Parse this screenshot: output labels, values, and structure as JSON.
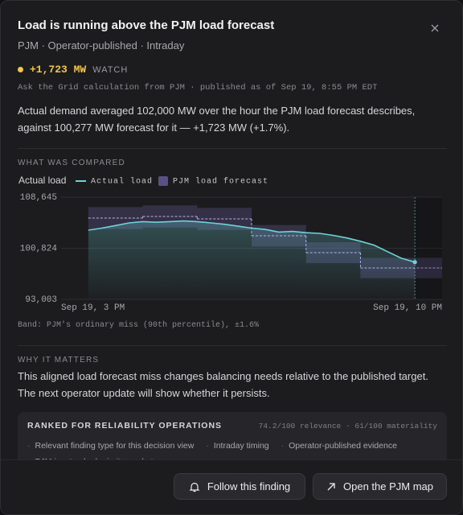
{
  "header": {
    "title": "Load is running above the PJM load forecast",
    "subtitle": "PJM · Operator-published · Intraday"
  },
  "status": {
    "value": "+1,723 MW",
    "level": "WATCH"
  },
  "source": "Ask the Grid calculation from PJM · published as of Sep 19, 8:55 PM EDT",
  "summary": "Actual demand averaged 102,000 MW over the hour the PJM load forecast describes, against 100,277 MW forecast for it — +1,723 MW (+1.7%).",
  "compared": {
    "heading": "WHAT WAS COMPARED",
    "note": "Band: PJM's ordinary miss (90th percentile), ±1.6%"
  },
  "chart_data": {
    "type": "line",
    "y_label": "Actual load",
    "xlim": [
      15,
      22
    ],
    "xticks": [
      {
        "value": 15,
        "label": "Sep 19, 3 PM"
      },
      {
        "value": 22,
        "label": "Sep 19, 10 PM"
      }
    ],
    "ylim": [
      93003,
      108645
    ],
    "yticks": [
      {
        "value": 93003,
        "label": "93,003"
      },
      {
        "value": 100824,
        "label": "100,824"
      },
      {
        "value": 108645,
        "label": "108,645"
      }
    ],
    "grid": true,
    "band_pct": 1.6,
    "series": [
      {
        "name": "Actual load",
        "color": "#6fd3d6",
        "x": [
          15.5,
          15.75,
          16,
          16.25,
          16.5,
          16.75,
          17,
          17.25,
          17.5,
          17.75,
          18,
          18.25,
          18.5,
          18.75,
          19,
          19.25,
          19.5,
          19.75,
          20,
          20.25,
          20.5,
          20.75,
          21,
          21.25,
          21.5
        ],
        "values": [
          103600,
          103900,
          104300,
          104700,
          104900,
          104800,
          104900,
          105000,
          104900,
          104700,
          104500,
          104200,
          103900,
          103700,
          103300,
          103400,
          103200,
          103100,
          102800,
          102400,
          101900,
          101300,
          100300,
          99300,
          98700
        ]
      },
      {
        "name": "PJM load forecast",
        "color": "#8b7fd6",
        "x": [
          15.5,
          16.5,
          17.5,
          18.5,
          19.5,
          20.5
        ],
        "values": [
          105442,
          105688,
          105319,
          102732,
          100145,
          97804
        ]
      }
    ]
  },
  "why": {
    "heading": "WHY IT MATTERS",
    "text": "This aligned load forecast miss changes balancing needs relative to the published target. The next operator update will show whether it persists."
  },
  "ranked": {
    "heading": "RANKED FOR RELIABILITY OPERATIONS",
    "relevance": "74.2/100 relevance",
    "materiality": "61/100 materiality",
    "tags": [
      "Relevant finding type for this decision view",
      "Intraday timing",
      "Operator-published evidence",
      "PJM is a tracked priority market"
    ]
  },
  "buttons": {
    "follow": "Follow this finding",
    "map": "Open the PJM map"
  }
}
